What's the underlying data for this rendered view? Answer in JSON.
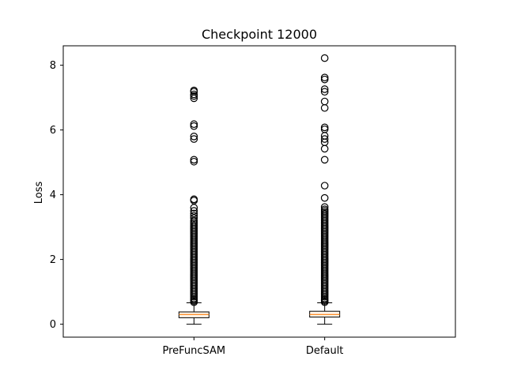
{
  "chart_data": {
    "type": "boxplot",
    "title": "Checkpoint 12000",
    "xlabel": "",
    "ylabel": "Loss",
    "ylim": [
      -0.4,
      8.6
    ],
    "yticks": [
      0,
      2,
      4,
      6,
      8
    ],
    "categories": [
      "PreFuncSAM",
      "Default"
    ],
    "grid": false,
    "series": [
      {
        "category": "PreFuncSAM",
        "whisker_low": 0.0,
        "q1": 0.2,
        "median": 0.3,
        "q3": 0.38,
        "whisker_high": 0.66,
        "outliers": [
          0.68,
          0.72,
          0.76,
          0.8,
          0.85,
          0.9,
          0.95,
          1.0,
          1.05,
          1.1,
          1.15,
          1.2,
          1.25,
          1.3,
          1.35,
          1.4,
          1.45,
          1.5,
          1.55,
          1.6,
          1.65,
          1.7,
          1.75,
          1.8,
          1.85,
          1.9,
          1.95,
          2.0,
          2.05,
          2.1,
          2.15,
          2.2,
          2.25,
          2.3,
          2.35,
          2.4,
          2.45,
          2.5,
          2.55,
          2.6,
          2.65,
          2.7,
          2.75,
          2.8,
          2.85,
          2.9,
          2.95,
          3.0,
          3.05,
          3.1,
          3.15,
          3.2,
          3.28,
          3.35,
          3.42,
          3.5,
          3.6,
          3.82,
          3.86,
          5.02,
          5.08,
          5.72,
          5.8,
          6.12,
          6.18,
          6.98,
          7.05,
          7.1,
          7.18,
          7.22
        ]
      },
      {
        "category": "Default",
        "whisker_low": 0.0,
        "q1": 0.22,
        "median": 0.3,
        "q3": 0.4,
        "whisker_high": 0.66,
        "outliers": [
          0.68,
          0.72,
          0.76,
          0.8,
          0.85,
          0.9,
          0.95,
          1.0,
          1.05,
          1.1,
          1.15,
          1.2,
          1.25,
          1.3,
          1.35,
          1.4,
          1.45,
          1.5,
          1.55,
          1.6,
          1.65,
          1.7,
          1.75,
          1.8,
          1.85,
          1.9,
          1.95,
          2.0,
          2.05,
          2.1,
          2.15,
          2.2,
          2.25,
          2.3,
          2.35,
          2.4,
          2.45,
          2.5,
          2.55,
          2.6,
          2.65,
          2.7,
          2.75,
          2.8,
          2.85,
          2.9,
          2.95,
          3.0,
          3.05,
          3.1,
          3.15,
          3.2,
          3.25,
          3.3,
          3.35,
          3.4,
          3.45,
          3.5,
          3.55,
          3.62,
          3.9,
          4.28,
          5.08,
          5.42,
          5.62,
          5.72,
          5.82,
          6.02,
          6.08,
          6.68,
          6.88,
          7.18,
          7.26,
          7.56,
          7.62,
          8.22
        ]
      }
    ]
  },
  "colors": {
    "median": "#ff7f0e",
    "box_fill": "#fff4e8",
    "stroke": "#000000",
    "background": "#ffffff"
  }
}
